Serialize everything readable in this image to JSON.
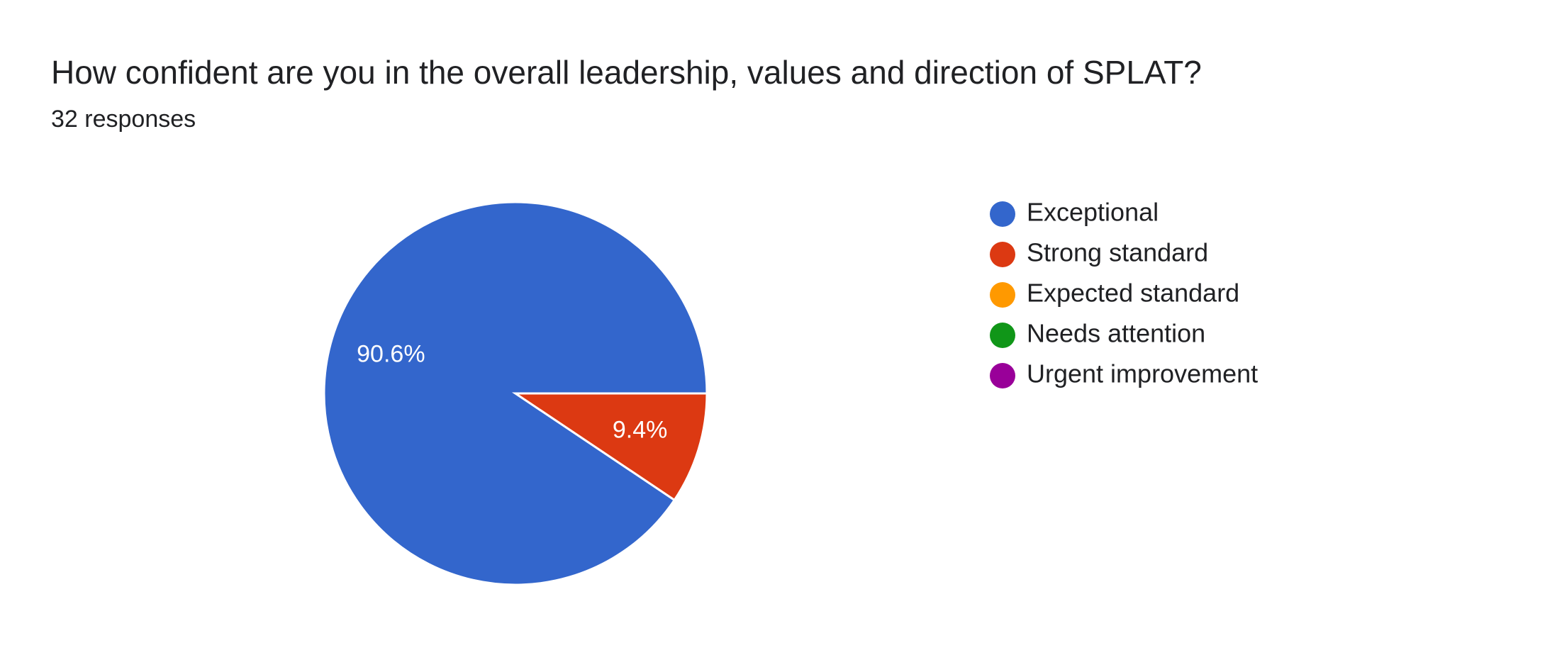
{
  "header": {
    "title": "How confident are you in the overall leadership, values and direction of SPLAT?",
    "responses": "32 responses"
  },
  "chart_data": {
    "type": "pie",
    "title": "How confident are you in the overall leadership, values and direction of SPLAT?",
    "subtitle": "32 responses",
    "start_angle_deg": 0,
    "direction": "counterclockwise",
    "legend_position": "right",
    "slices": [
      {
        "label": "Exceptional",
        "value": 90.6,
        "display": "90.6%",
        "color": "#3366cc"
      },
      {
        "label": "Strong standard",
        "value": 9.4,
        "display": "9.4%",
        "color": "#dc3912"
      },
      {
        "label": "Expected standard",
        "value": 0,
        "display": "",
        "color": "#ff9900"
      },
      {
        "label": "Needs attention",
        "value": 0,
        "display": "",
        "color": "#109618"
      },
      {
        "label": "Urgent improvement",
        "value": 0,
        "display": "",
        "color": "#990099"
      }
    ]
  }
}
